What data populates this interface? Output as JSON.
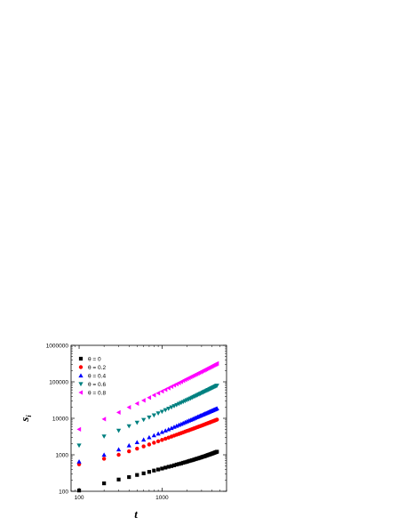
{
  "chart_data": {
    "type": "scatter",
    "xscale": "log",
    "yscale": "log",
    "xlim": [
      80,
      6000
    ],
    "ylim": [
      100,
      1000000
    ],
    "xlabel": "t",
    "ylabel": "s",
    "ylabel_sub": "i",
    "x_ticks": [
      100,
      1000
    ],
    "x_tick_labels": [
      "100",
      "1000"
    ],
    "y_ticks": [
      100,
      1000,
      10000,
      100000,
      1000000
    ],
    "y_tick_labels": [
      "100",
      "1000",
      "10000",
      "100000",
      "1000000"
    ],
    "grid": false,
    "legend_position": "top-left",
    "x": [
      100,
      200,
      300,
      400,
      500,
      600,
      700,
      800,
      900,
      1000,
      1100,
      1200,
      1300,
      1400,
      1500,
      1600,
      1700,
      1800,
      1900,
      2000,
      2100,
      2200,
      2300,
      2400,
      2500,
      2600,
      2700,
      2800,
      2900,
      3000,
      3100,
      3200,
      3300,
      3400,
      3500,
      3600,
      3700,
      3800,
      3900,
      4000,
      4100,
      4200,
      4300,
      4400,
      4500,
      4600
    ],
    "series": [
      {
        "name": "θ = 0",
        "marker": "square",
        "color": "#000000",
        "values": [
          105,
          165,
          210,
          245,
          280,
          310,
          340,
          370,
          395,
          420,
          445,
          470,
          490,
          515,
          540,
          560,
          580,
          605,
          625,
          645,
          670,
          690,
          710,
          730,
          755,
          775,
          795,
          815,
          835,
          860,
          880,
          900,
          920,
          945,
          965,
          990,
          1010,
          1030,
          1055,
          1075,
          1100,
          1120,
          1145,
          1170,
          1190,
          1215
        ]
      },
      {
        "name": "θ = 0.2",
        "marker": "circle",
        "color": "#ff0000",
        "values": [
          550,
          780,
          1000,
          1250,
          1480,
          1700,
          1920,
          2140,
          2350,
          2560,
          2760,
          2960,
          3160,
          3350,
          3550,
          3740,
          3930,
          4120,
          4310,
          4500,
          4680,
          4870,
          5050,
          5240,
          5420,
          5600,
          5780,
          5960,
          6140,
          6320,
          6500,
          6680,
          6860,
          7040,
          7220,
          7400,
          7580,
          7760,
          7940,
          8120,
          8300,
          8480,
          8660,
          8840,
          9020,
          9200
        ]
      },
      {
        "name": "θ = 0.4",
        "marker": "triangle-up",
        "color": "#0000ff",
        "values": [
          650,
          1000,
          1400,
          1800,
          2200,
          2600,
          3000,
          3400,
          3800,
          4200,
          4600,
          5000,
          5400,
          5800,
          6200,
          6600,
          7000,
          7400,
          7800,
          8200,
          8600,
          9000,
          9400,
          9800,
          10200,
          10600,
          11000,
          11400,
          11800,
          12200,
          12600,
          13000,
          13400,
          13800,
          14200,
          14600,
          15000,
          15400,
          15800,
          16200,
          16600,
          17000,
          17400,
          17800,
          18200,
          18600
        ]
      },
      {
        "name": "θ = 0.6",
        "marker": "triangle-down",
        "color": "#008080",
        "values": [
          1800,
          3200,
          4600,
          6100,
          7600,
          9100,
          10600,
          12100,
          13700,
          15200,
          16800,
          18400,
          20000,
          21600,
          23200,
          24900,
          26500,
          28200,
          29900,
          31600,
          33300,
          35000,
          36700,
          38500,
          40200,
          42000,
          43700,
          45500,
          47300,
          49100,
          50900,
          52700,
          54500,
          56300,
          58200,
          60000,
          61900,
          63700,
          65600,
          67500,
          69400,
          71300,
          73200,
          75100,
          77000,
          79000
        ]
      },
      {
        "name": "θ = 0.8",
        "marker": "triangle-left",
        "color": "#ff00ff",
        "values": [
          5000,
          9500,
          14500,
          20000,
          25500,
          31000,
          37000,
          43000,
          49000,
          55000,
          61000,
          67500,
          74000,
          80500,
          87000,
          93500,
          100000,
          107000,
          114000,
          121000,
          128000,
          135000,
          142000,
          149000,
          156000,
          163000,
          170000,
          177500,
          185000,
          192500,
          200000,
          207500,
          215000,
          222500,
          230000,
          238000,
          246000,
          254000,
          262000,
          270000,
          278000,
          286000,
          294000,
          302000,
          310000,
          318000
        ]
      }
    ]
  }
}
